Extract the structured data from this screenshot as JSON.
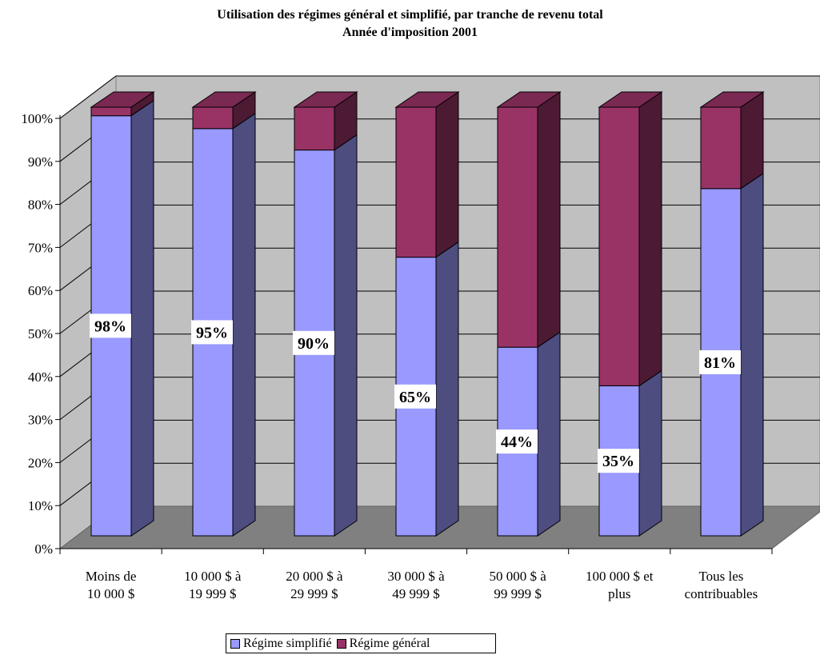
{
  "chart_data": {
    "type": "bar",
    "stacked": true,
    "percent_stacked": true,
    "three_d": true,
    "title": "Utilisation des régimes général et simplifié, par tranche de revenu total",
    "subtitle": "Année d'imposition 2001",
    "categories": [
      [
        "Moins de",
        "10 000 $"
      ],
      [
        "10 000 $ à",
        "19 999 $"
      ],
      [
        "20 000 $ à",
        "29 999 $"
      ],
      [
        "30 000 $ à",
        "49 999 $"
      ],
      [
        "50 000 $ à",
        "99 999 $"
      ],
      [
        "100 000 $ et",
        "plus"
      ],
      [
        "Tous les",
        "contribuables"
      ]
    ],
    "series": [
      {
        "name": "Régime simplifié",
        "color": "#9999FF",
        "values": [
          98,
          95,
          90,
          65,
          44,
          35,
          81
        ]
      },
      {
        "name": "Régime général",
        "color": "#993366",
        "values": [
          2,
          5,
          10,
          35,
          56,
          65,
          19
        ]
      }
    ],
    "data_labels": [
      "98%",
      "95%",
      "90%",
      "65%",
      "44%",
      "35%",
      "81%"
    ],
    "y_ticks": [
      "0%",
      "10%",
      "20%",
      "30%",
      "40%",
      "50%",
      "60%",
      "70%",
      "80%",
      "90%",
      "100%"
    ],
    "ylim": [
      0,
      100
    ],
    "grid": true,
    "legend_position": "bottom"
  }
}
